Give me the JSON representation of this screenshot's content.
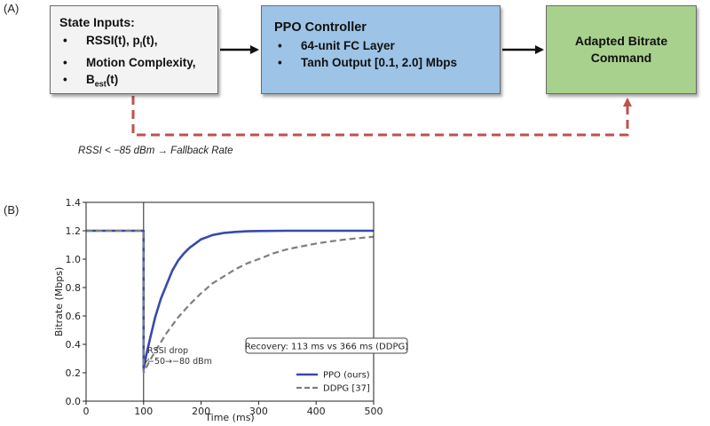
{
  "panel_a": {
    "label": "(A)",
    "inputs_box": {
      "title": "State Inputs:",
      "items": [
        {
          "main": "RSSI(t), p",
          "sub": "l",
          "tail": "(t),"
        },
        {
          "main": "Motion Complexity,",
          "sub": "",
          "tail": ""
        },
        {
          "main": "B",
          "sub": "est",
          "tail": "(t)"
        }
      ]
    },
    "ppo_box": {
      "title": "PPO Controller",
      "items": [
        "64-unit FC Layer",
        "Tanh Output [0.1, 2.0] Mbps"
      ]
    },
    "command_box": {
      "title": "Adapted Bitrate\nCommand"
    },
    "fallback_label": "RSSI < −85 dBm → Fallback Rate",
    "colors": {
      "inputs": "#f2f3f2",
      "ppo": "#9dc3e6",
      "command": "#a9d18e",
      "fallback_arrow": "#c0504d"
    }
  },
  "panel_b": {
    "label": "(B)",
    "annotation_drop": "RSSI drop\n−50→−80 dBm",
    "annotation_recovery": "Recovery: 113 ms vs 366 ms (DDPG)"
  },
  "chart_data": {
    "type": "line",
    "xlabel": "Time (ms)",
    "ylabel": "Bitrate (Mbps)",
    "xlim": [
      0,
      500
    ],
    "ylim": [
      0.0,
      1.4
    ],
    "xticks": [
      0,
      100,
      200,
      300,
      400,
      500
    ],
    "yticks": [
      0.0,
      0.2,
      0.4,
      0.6,
      0.8,
      1.0,
      1.2,
      1.4
    ],
    "grid": false,
    "legend": "bottom-right",
    "vline_x": 100,
    "series": [
      {
        "name": "PPO (ours)",
        "color": "#3949ab",
        "style": "solid",
        "x": [
          0,
          100,
          100,
          105,
          110,
          120,
          130,
          140,
          150,
          160,
          170,
          180,
          190,
          200,
          220,
          240,
          260,
          280,
          300,
          350,
          400,
          450,
          500
        ],
        "y": [
          1.2,
          1.2,
          0.22,
          0.33,
          0.42,
          0.59,
          0.72,
          0.82,
          0.92,
          0.99,
          1.04,
          1.08,
          1.11,
          1.14,
          1.17,
          1.185,
          1.192,
          1.196,
          1.198,
          1.2,
          1.2,
          1.2,
          1.2
        ]
      },
      {
        "name": "DDPG [37]",
        "color": "#7f7f7f",
        "style": "dashed",
        "x": [
          0,
          100,
          100,
          110,
          120,
          140,
          160,
          180,
          200,
          220,
          240,
          260,
          280,
          300,
          325,
          350,
          375,
          400,
          425,
          450,
          475,
          500
        ],
        "y": [
          1.2,
          1.2,
          0.2,
          0.28,
          0.35,
          0.48,
          0.59,
          0.68,
          0.76,
          0.83,
          0.88,
          0.93,
          0.97,
          1.0,
          1.04,
          1.07,
          1.09,
          1.11,
          1.125,
          1.138,
          1.148,
          1.158
        ]
      }
    ]
  }
}
